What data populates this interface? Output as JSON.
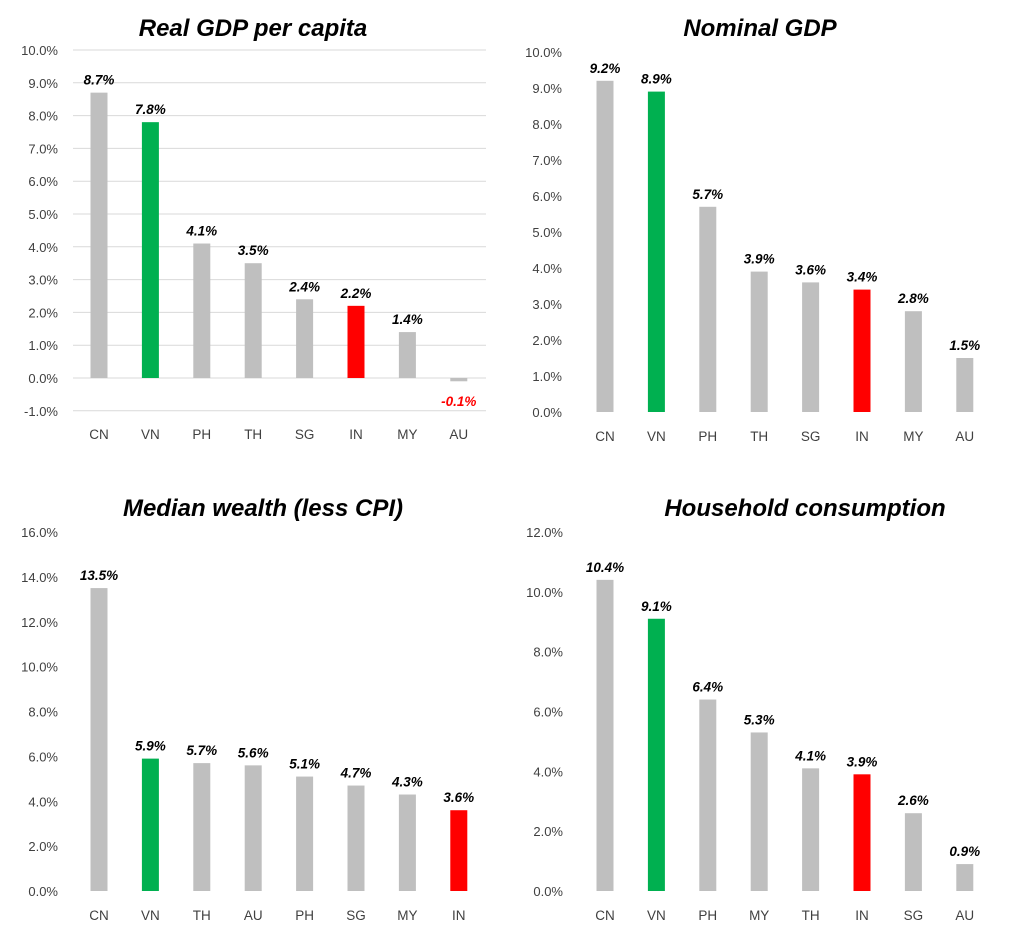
{
  "colors": {
    "default": "#bfbfbf",
    "highlight_green": "#00b050",
    "highlight_red": "#ff0000",
    "grid": "#d9d9d9",
    "negative_label": "#ff0000"
  },
  "chart_data": [
    {
      "type": "bar",
      "title": "Real GDP per capita",
      "categories": [
        "CN",
        "VN",
        "PH",
        "TH",
        "SG",
        "IN",
        "MY",
        "AU"
      ],
      "values": [
        8.7,
        7.8,
        4.1,
        3.5,
        2.4,
        2.2,
        1.4,
        -0.1
      ],
      "labels": [
        "8.7%",
        "7.8%",
        "4.1%",
        "3.5%",
        "2.4%",
        "2.2%",
        "1.4%",
        "-0.1%"
      ],
      "highlight": {
        "VN": "green",
        "IN": "red"
      },
      "ylim": [
        -1,
        10
      ],
      "yticks": [
        "-1.0%",
        "0.0%",
        "1.0%",
        "2.0%",
        "3.0%",
        "4.0%",
        "5.0%",
        "6.0%",
        "7.0%",
        "8.0%",
        "9.0%",
        "10.0%"
      ],
      "ytick_values": [
        -1,
        0,
        1,
        2,
        3,
        4,
        5,
        6,
        7,
        8,
        9,
        10
      ],
      "grid": true,
      "xlabel": "",
      "ylabel": ""
    },
    {
      "type": "bar",
      "title": "Nominal GDP",
      "categories": [
        "CN",
        "VN",
        "PH",
        "TH",
        "SG",
        "IN",
        "MY",
        "AU"
      ],
      "values": [
        9.2,
        8.9,
        5.7,
        3.9,
        3.6,
        3.4,
        2.8,
        1.5
      ],
      "labels": [
        "9.2%",
        "8.9%",
        "5.7%",
        "3.9%",
        "3.6%",
        "3.4%",
        "2.8%",
        "1.5%"
      ],
      "highlight": {
        "VN": "green",
        "IN": "red"
      },
      "ylim": [
        0,
        10
      ],
      "yticks": [
        "0.0%",
        "1.0%",
        "2.0%",
        "3.0%",
        "4.0%",
        "5.0%",
        "6.0%",
        "7.0%",
        "8.0%",
        "9.0%",
        "10.0%"
      ],
      "ytick_values": [
        0,
        1,
        2,
        3,
        4,
        5,
        6,
        7,
        8,
        9,
        10
      ],
      "grid": false,
      "xlabel": "",
      "ylabel": ""
    },
    {
      "type": "bar",
      "title": "Median wealth (less CPI)",
      "categories": [
        "CN",
        "VN",
        "TH",
        "AU",
        "PH",
        "SG",
        "MY",
        "IN"
      ],
      "values": [
        13.5,
        5.9,
        5.7,
        5.6,
        5.1,
        4.7,
        4.3,
        3.6
      ],
      "labels": [
        "13.5%",
        "5.9%",
        "5.7%",
        "5.6%",
        "5.1%",
        "4.7%",
        "4.3%",
        "3.6%"
      ],
      "highlight": {
        "VN": "green",
        "IN": "red"
      },
      "ylim": [
        0,
        16
      ],
      "yticks": [
        "0.0%",
        "2.0%",
        "4.0%",
        "6.0%",
        "8.0%",
        "10.0%",
        "12.0%",
        "14.0%",
        "16.0%"
      ],
      "ytick_values": [
        0,
        2,
        4,
        6,
        8,
        10,
        12,
        14,
        16
      ],
      "grid": false,
      "xlabel": "",
      "ylabel": ""
    },
    {
      "type": "bar",
      "title": "Household consumption",
      "categories": [
        "CN",
        "VN",
        "PH",
        "MY",
        "TH",
        "IN",
        "SG",
        "AU"
      ],
      "values": [
        10.4,
        9.1,
        6.4,
        5.3,
        4.1,
        3.9,
        2.6,
        0.9
      ],
      "labels": [
        "10.4%",
        "9.1%",
        "6.4%",
        "5.3%",
        "4.1%",
        "3.9%",
        "2.6%",
        "0.9%"
      ],
      "highlight": {
        "VN": "green",
        "IN": "red"
      },
      "ylim": [
        0,
        12
      ],
      "yticks": [
        "0.0%",
        "2.0%",
        "4.0%",
        "6.0%",
        "8.0%",
        "10.0%",
        "12.0%"
      ],
      "ytick_values": [
        0,
        2,
        4,
        6,
        8,
        10,
        12
      ],
      "grid": false,
      "xlabel": "",
      "ylabel": ""
    }
  ]
}
